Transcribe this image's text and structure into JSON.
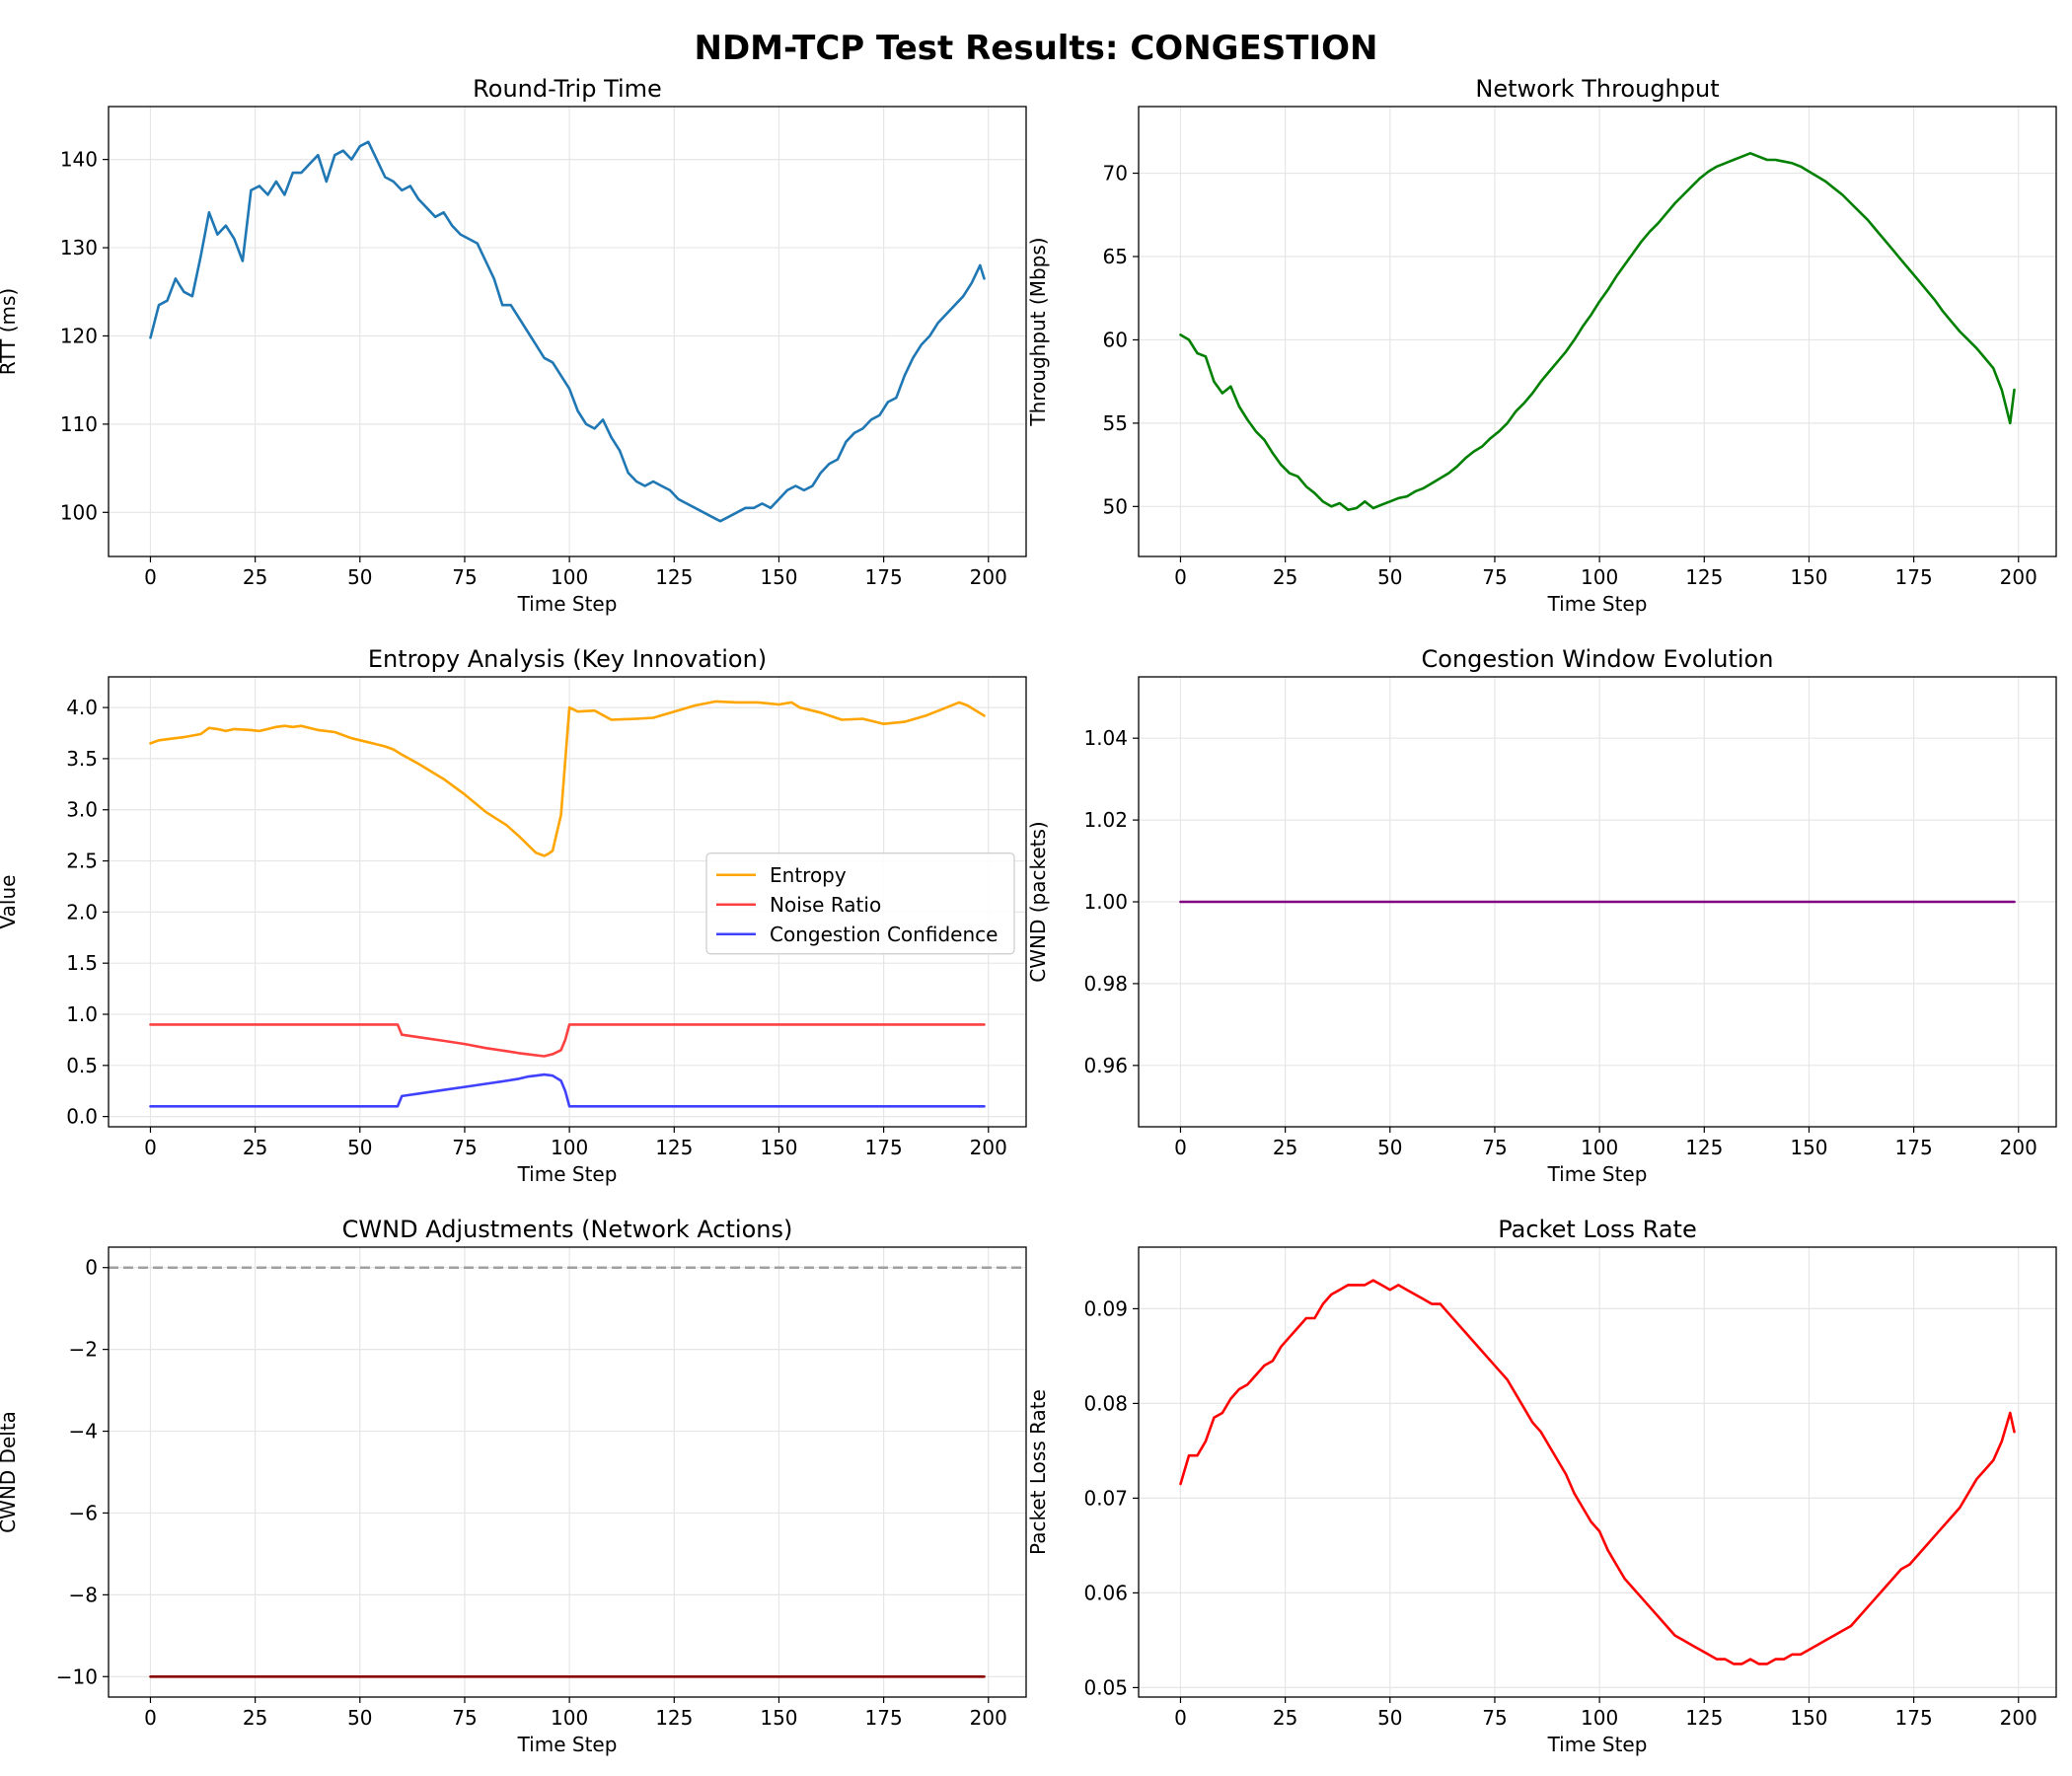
{
  "figure_title": "NDM-TCP Test Results: CONGESTION",
  "chart_data": [
    {
      "type": "line",
      "title": "Round-Trip Time",
      "xlabel": "Time Step",
      "ylabel": "RTT (ms)",
      "xlim": [
        -10,
        209
      ],
      "ylim": [
        95,
        146
      ],
      "xticks": [
        0,
        25,
        50,
        75,
        100,
        125,
        150,
        175,
        200
      ],
      "yticks": [
        100,
        110,
        120,
        130,
        140
      ],
      "grid": true,
      "series": [
        {
          "color": "#1f77b4",
          "x": [
            0,
            2,
            4,
            6,
            8,
            10,
            12,
            14,
            16,
            18,
            20,
            22,
            24,
            26,
            28,
            30,
            32,
            34,
            36,
            38,
            40,
            42,
            44,
            46,
            48,
            50,
            52,
            54,
            56,
            58,
            60,
            62,
            64,
            66,
            68,
            70,
            72,
            74,
            76,
            78,
            80,
            82,
            84,
            86,
            88,
            90,
            92,
            94,
            96,
            98,
            100,
            102,
            104,
            106,
            108,
            110,
            112,
            114,
            116,
            118,
            120,
            122,
            124,
            126,
            128,
            130,
            132,
            134,
            136,
            138,
            140,
            142,
            144,
            146,
            148,
            150,
            152,
            154,
            156,
            158,
            160,
            162,
            164,
            166,
            168,
            170,
            172,
            174,
            176,
            178,
            180,
            182,
            184,
            186,
            188,
            190,
            192,
            194,
            196,
            198,
            199
          ],
          "y": [
            119.8,
            123.5,
            124.0,
            126.5,
            125.0,
            124.5,
            129.0,
            134.0,
            131.5,
            132.5,
            131.0,
            128.5,
            136.5,
            137.0,
            136.0,
            137.5,
            136.0,
            138.5,
            138.5,
            139.5,
            140.5,
            137.5,
            140.5,
            141.0,
            140.0,
            141.5,
            142.0,
            140.0,
            138.0,
            137.5,
            136.5,
            137.0,
            135.5,
            134.5,
            133.5,
            134.0,
            132.5,
            131.5,
            131.0,
            130.5,
            128.5,
            126.5,
            123.5,
            123.5,
            122.0,
            120.5,
            119.0,
            117.5,
            117.0,
            115.5,
            114.0,
            111.5,
            110.0,
            109.5,
            110.5,
            108.5,
            107.0,
            104.5,
            103.5,
            103.0,
            103.5,
            103.0,
            102.5,
            101.5,
            101.0,
            100.5,
            100.0,
            99.5,
            99.0,
            99.5,
            100.0,
            100.5,
            100.5,
            101.0,
            100.5,
            101.5,
            102.5,
            103.0,
            102.5,
            103.0,
            104.5,
            105.5,
            106.0,
            108.0,
            109.0,
            109.5,
            110.5,
            111.0,
            112.5,
            113.0,
            115.5,
            117.5,
            119.0,
            120.0,
            121.5,
            122.5,
            123.5,
            124.5,
            126.0,
            128.0,
            126.5
          ]
        }
      ]
    },
    {
      "type": "line",
      "title": "Network Throughput",
      "xlabel": "Time Step",
      "ylabel": "Throughput (Mbps)",
      "xlim": [
        -10,
        209
      ],
      "ylim": [
        47,
        74
      ],
      "xticks": [
        0,
        25,
        50,
        75,
        100,
        125,
        150,
        175,
        200
      ],
      "yticks": [
        50,
        55,
        60,
        65,
        70
      ],
      "grid": true,
      "series": [
        {
          "color": "#008000",
          "x": [
            0,
            2,
            4,
            6,
            8,
            10,
            12,
            14,
            16,
            18,
            20,
            22,
            24,
            26,
            28,
            30,
            32,
            34,
            36,
            38,
            40,
            42,
            44,
            46,
            48,
            50,
            52,
            54,
            56,
            58,
            60,
            62,
            64,
            66,
            68,
            70,
            72,
            74,
            76,
            78,
            80,
            82,
            84,
            86,
            88,
            90,
            92,
            94,
            96,
            98,
            100,
            102,
            104,
            106,
            108,
            110,
            112,
            114,
            116,
            118,
            120,
            122,
            124,
            126,
            128,
            130,
            132,
            134,
            136,
            138,
            140,
            142,
            144,
            146,
            148,
            150,
            152,
            154,
            156,
            158,
            160,
            162,
            164,
            166,
            168,
            170,
            172,
            174,
            176,
            178,
            180,
            182,
            184,
            186,
            188,
            190,
            192,
            194,
            196,
            198,
            199
          ],
          "y": [
            60.3,
            60.0,
            59.2,
            59.0,
            57.5,
            56.8,
            57.2,
            56.0,
            55.2,
            54.5,
            54.0,
            53.2,
            52.5,
            52.0,
            51.8,
            51.2,
            50.8,
            50.3,
            50.0,
            50.2,
            49.8,
            49.9,
            50.3,
            49.9,
            50.1,
            50.3,
            50.5,
            50.6,
            50.9,
            51.1,
            51.4,
            51.7,
            52.0,
            52.4,
            52.9,
            53.3,
            53.6,
            54.1,
            54.5,
            55.0,
            55.7,
            56.2,
            56.8,
            57.5,
            58.1,
            58.7,
            59.3,
            60.0,
            60.8,
            61.5,
            62.3,
            63.0,
            63.8,
            64.5,
            65.2,
            65.9,
            66.5,
            67.0,
            67.6,
            68.2,
            68.7,
            69.2,
            69.7,
            70.1,
            70.4,
            70.6,
            70.8,
            71.0,
            71.2,
            71.0,
            70.8,
            70.8,
            70.7,
            70.6,
            70.4,
            70.1,
            69.8,
            69.5,
            69.1,
            68.7,
            68.2,
            67.7,
            67.2,
            66.6,
            66.0,
            65.4,
            64.8,
            64.2,
            63.6,
            63.0,
            62.4,
            61.7,
            61.1,
            60.5,
            60.0,
            59.5,
            58.9,
            58.3,
            57.0,
            55.0,
            57.0
          ]
        }
      ]
    },
    {
      "type": "line",
      "title": "Entropy Analysis (Key Innovation)",
      "xlabel": "Time Step",
      "ylabel": "Value",
      "xlim": [
        -10,
        209
      ],
      "ylim": [
        -0.1,
        4.3
      ],
      "xticks": [
        0,
        25,
        50,
        75,
        100,
        125,
        150,
        175,
        200
      ],
      "yticks": [
        0.0,
        0.5,
        1.0,
        1.5,
        2.0,
        2.5,
        3.0,
        3.5,
        4.0
      ],
      "ytick_format": "0.0",
      "grid": true,
      "legend": "center-right",
      "series": [
        {
          "name": "Entropy",
          "color": "#ffa500",
          "x": [
            0,
            2,
            4,
            8,
            12,
            14,
            16,
            18,
            20,
            24,
            26,
            28,
            30,
            32,
            34,
            36,
            40,
            44,
            48,
            52,
            56,
            58,
            60,
            64,
            70,
            75,
            80,
            85,
            88,
            90,
            92,
            94,
            95,
            96,
            98,
            100,
            102,
            106,
            110,
            116,
            120,
            125,
            130,
            135,
            140,
            145,
            150,
            153,
            155,
            160,
            165,
            170,
            175,
            180,
            185,
            190,
            193,
            195,
            199
          ],
          "y": [
            3.65,
            3.68,
            3.69,
            3.71,
            3.74,
            3.8,
            3.79,
            3.77,
            3.79,
            3.78,
            3.77,
            3.79,
            3.81,
            3.82,
            3.81,
            3.82,
            3.78,
            3.76,
            3.7,
            3.66,
            3.62,
            3.59,
            3.54,
            3.45,
            3.3,
            3.15,
            2.98,
            2.85,
            2.74,
            2.66,
            2.58,
            2.55,
            2.57,
            2.6,
            2.95,
            4.0,
            3.96,
            3.97,
            3.88,
            3.89,
            3.9,
            3.96,
            4.02,
            4.06,
            4.05,
            4.05,
            4.03,
            4.05,
            4.0,
            3.95,
            3.88,
            3.89,
            3.84,
            3.86,
            3.92,
            4.0,
            4.05,
            4.02,
            3.92
          ]
        },
        {
          "name": "Noise Ratio",
          "color": "#ff4040",
          "x": [
            0,
            59,
            60,
            65,
            70,
            75,
            80,
            85,
            88,
            90,
            92,
            94,
            96,
            98,
            99,
            100,
            199
          ],
          "y": [
            0.9,
            0.9,
            0.8,
            0.77,
            0.74,
            0.71,
            0.67,
            0.64,
            0.62,
            0.61,
            0.6,
            0.59,
            0.61,
            0.65,
            0.75,
            0.9,
            0.9
          ]
        },
        {
          "name": "Congestion Confidence",
          "color": "#4040ff",
          "x": [
            0,
            59,
            60,
            65,
            70,
            75,
            80,
            85,
            88,
            90,
            92,
            94,
            96,
            98,
            99,
            100,
            199
          ],
          "y": [
            0.1,
            0.1,
            0.2,
            0.23,
            0.26,
            0.29,
            0.32,
            0.35,
            0.37,
            0.39,
            0.4,
            0.41,
            0.4,
            0.35,
            0.25,
            0.1,
            0.1
          ]
        }
      ]
    },
    {
      "type": "line",
      "title": "Congestion Window Evolution",
      "xlabel": "Time Step",
      "ylabel": "CWND (packets)",
      "xlim": [
        -10,
        209
      ],
      "ylim": [
        0.945,
        1.055
      ],
      "xticks": [
        0,
        25,
        50,
        75,
        100,
        125,
        150,
        175,
        200
      ],
      "yticks": [
        0.96,
        0.98,
        1.0,
        1.02,
        1.04
      ],
      "ytick_format": "0.00",
      "grid": true,
      "series": [
        {
          "color": "#800080",
          "x": [
            0,
            199
          ],
          "y": [
            1.0,
            1.0
          ]
        }
      ]
    },
    {
      "type": "line",
      "title": "CWND Adjustments (Network Actions)",
      "xlabel": "Time Step",
      "ylabel": "CWND Delta",
      "xlim": [
        -10,
        209
      ],
      "ylim": [
        -10.5,
        0.5
      ],
      "xticks": [
        0,
        25,
        50,
        75,
        100,
        125,
        150,
        175,
        200
      ],
      "yticks": [
        0,
        -2,
        -4,
        -6,
        -8,
        -10
      ],
      "grid": true,
      "reference_line": {
        "y": 0,
        "color": "#a0a0a0",
        "style": "dashed"
      },
      "series": [
        {
          "color": "#8b0000",
          "x": [
            0,
            199
          ],
          "y": [
            -10,
            -10
          ]
        }
      ]
    },
    {
      "type": "line",
      "title": "Packet Loss Rate",
      "xlabel": "Time Step",
      "ylabel": "Packet Loss Rate",
      "xlim": [
        -10,
        209
      ],
      "ylim": [
        0.049,
        0.0965
      ],
      "xticks": [
        0,
        25,
        50,
        75,
        100,
        125,
        150,
        175,
        200
      ],
      "yticks": [
        0.05,
        0.06,
        0.07,
        0.08,
        0.09
      ],
      "ytick_format": "0.00",
      "grid": true,
      "series": [
        {
          "color": "#ff0000",
          "x": [
            0,
            2,
            4,
            6,
            8,
            10,
            12,
            14,
            16,
            18,
            20,
            22,
            24,
            26,
            28,
            30,
            32,
            34,
            36,
            38,
            40,
            42,
            44,
            46,
            48,
            50,
            52,
            54,
            56,
            58,
            60,
            62,
            64,
            66,
            68,
            70,
            72,
            74,
            76,
            78,
            80,
            82,
            84,
            86,
            88,
            90,
            92,
            94,
            96,
            98,
            100,
            102,
            104,
            106,
            108,
            110,
            112,
            114,
            116,
            118,
            120,
            122,
            124,
            126,
            128,
            130,
            132,
            134,
            136,
            138,
            140,
            142,
            144,
            146,
            148,
            150,
            152,
            154,
            156,
            158,
            160,
            162,
            164,
            166,
            168,
            170,
            172,
            174,
            176,
            178,
            180,
            182,
            184,
            186,
            188,
            190,
            192,
            194,
            196,
            198,
            199
          ],
          "y": [
            0.0715,
            0.0745,
            0.0745,
            0.076,
            0.0785,
            0.079,
            0.0805,
            0.0815,
            0.082,
            0.083,
            0.084,
            0.0845,
            0.086,
            0.087,
            0.088,
            0.089,
            0.089,
            0.0905,
            0.0915,
            0.092,
            0.0925,
            0.0925,
            0.0925,
            0.093,
            0.0925,
            0.092,
            0.0925,
            0.092,
            0.0915,
            0.091,
            0.0905,
            0.0905,
            0.0895,
            0.0885,
            0.0875,
            0.0865,
            0.0855,
            0.0845,
            0.0835,
            0.0825,
            0.081,
            0.0795,
            0.078,
            0.077,
            0.0755,
            0.074,
            0.0725,
            0.0705,
            0.069,
            0.0675,
            0.0665,
            0.0645,
            0.063,
            0.0615,
            0.0605,
            0.0595,
            0.0585,
            0.0575,
            0.0565,
            0.0555,
            0.055,
            0.0545,
            0.054,
            0.0535,
            0.053,
            0.053,
            0.0525,
            0.0525,
            0.053,
            0.0525,
            0.0525,
            0.053,
            0.053,
            0.0535,
            0.0535,
            0.054,
            0.0545,
            0.055,
            0.0555,
            0.056,
            0.0565,
            0.0575,
            0.0585,
            0.0595,
            0.0605,
            0.0615,
            0.0625,
            0.063,
            0.064,
            0.065,
            0.066,
            0.067,
            0.068,
            0.069,
            0.0705,
            0.072,
            0.073,
            0.074,
            0.076,
            0.079,
            0.077
          ]
        }
      ]
    }
  ]
}
